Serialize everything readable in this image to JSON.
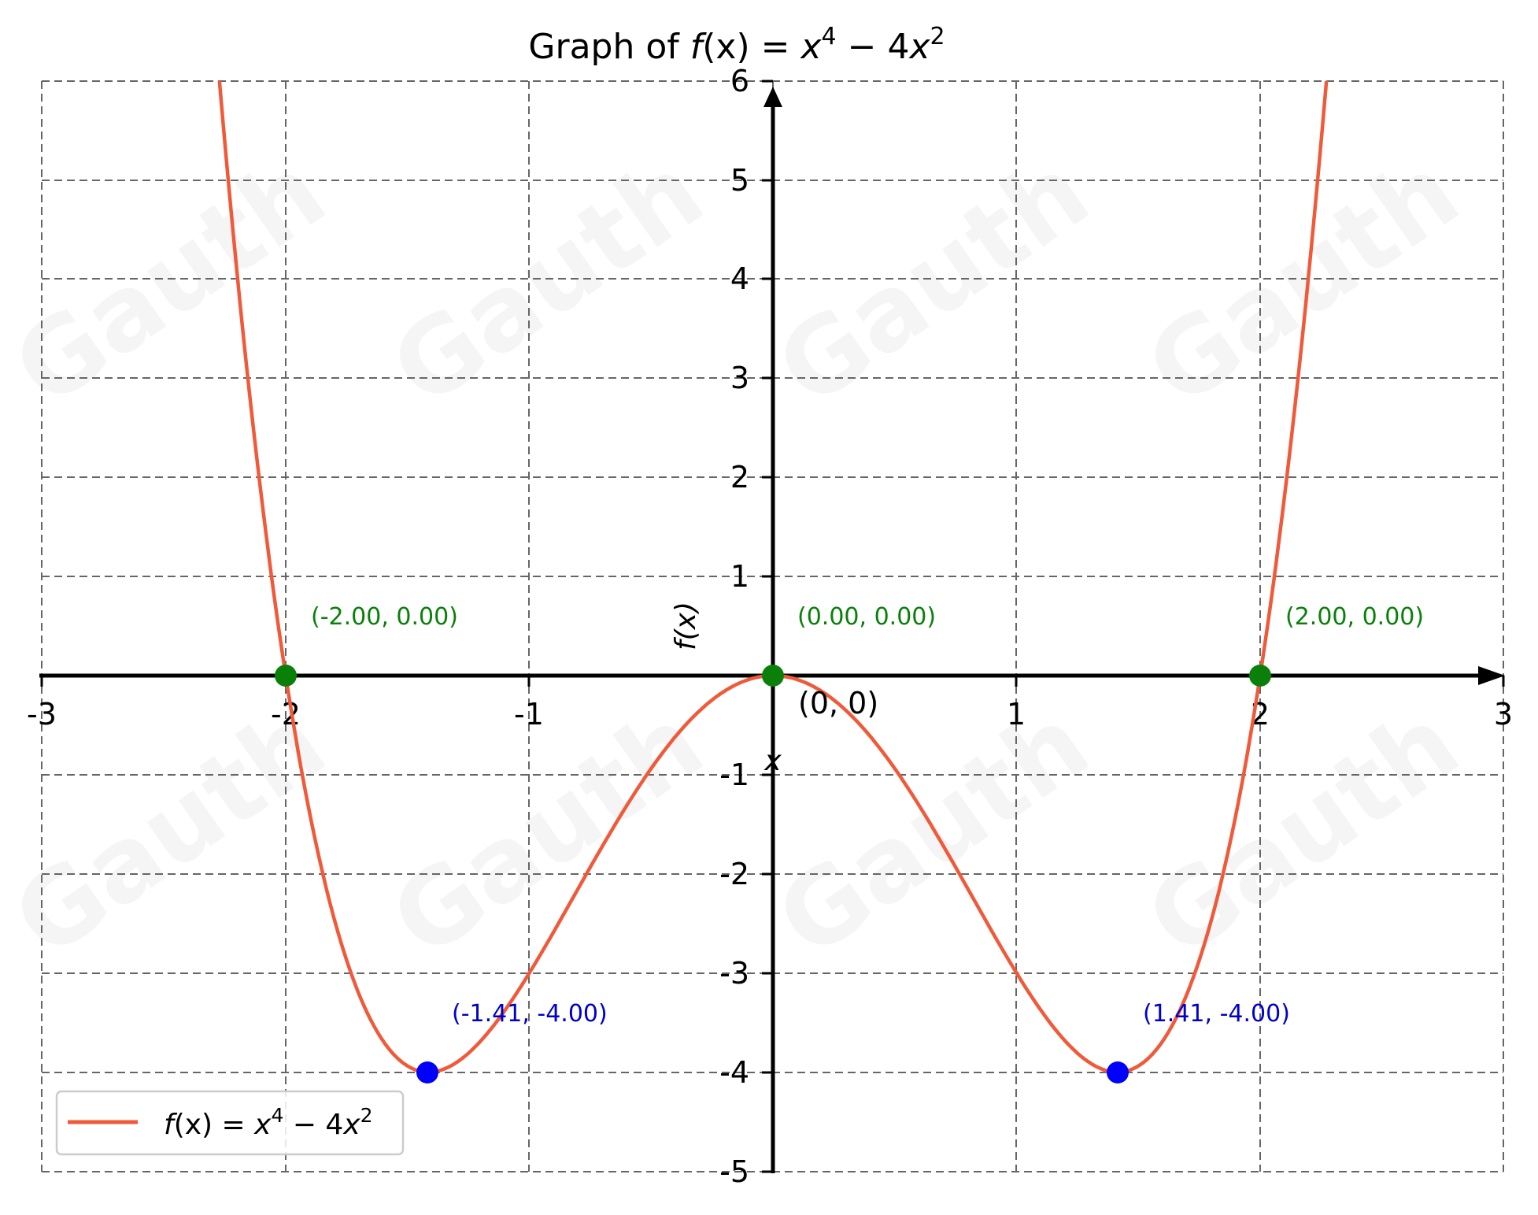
{
  "chart_data": {
    "type": "line",
    "title": "Graph of f(x) = x⁴ − 4x²",
    "title_parts": {
      "prefix": "Graph of ",
      "fx": "f",
      "rest": "(x) = x",
      "exp1": "4",
      "mid": " − 4x",
      "exp2": "2"
    },
    "xlabel": "x",
    "ylabel": "f(x)",
    "xlim": [
      -3,
      3
    ],
    "ylim": [
      -5,
      6
    ],
    "grid": true,
    "grid_style": "dashed",
    "legend_position": "lower left",
    "x_ticks": [
      -3,
      -2,
      -1,
      1,
      2,
      3
    ],
    "x_tick_labels": [
      "-3",
      "-2",
      "-1",
      "1",
      "2",
      "3"
    ],
    "y_ticks": [
      6,
      5,
      4,
      3,
      2,
      1,
      -1,
      -2,
      -3,
      -4,
      -5
    ],
    "y_tick_labels": [
      "6",
      "5",
      "4",
      "3",
      "2",
      "1",
      "-1",
      "-2",
      "-3",
      "-4",
      "-5"
    ],
    "series": [
      {
        "name": "f(x) = x⁴ − 4x²",
        "expression": "x^4 - 4x^2",
        "color": "#f05a3a",
        "x": [
          -2.27,
          -2.2,
          -2.1,
          -2.0,
          -1.9,
          -1.8,
          -1.7,
          -1.6,
          -1.5,
          -1.414,
          -1.3,
          -1.2,
          -1.1,
          -1.0,
          -0.9,
          -0.8,
          -0.7,
          -0.6,
          -0.5,
          -0.4,
          -0.3,
          -0.2,
          -0.1,
          0.0,
          0.1,
          0.2,
          0.3,
          0.4,
          0.5,
          0.6,
          0.7,
          0.8,
          0.9,
          1.0,
          1.1,
          1.2,
          1.3,
          1.414,
          1.5,
          1.6,
          1.7,
          1.8,
          1.9,
          2.0,
          2.1,
          2.2,
          2.27
        ],
        "values": [
          5.94,
          4.07,
          1.81,
          0.0,
          -1.41,
          -2.46,
          -3.21,
          -3.69,
          -3.94,
          -4.0,
          -3.9,
          -3.69,
          -3.38,
          -3.0,
          -2.58,
          -2.15,
          -1.72,
          -1.31,
          -0.94,
          -0.61,
          -0.35,
          -0.16,
          -0.04,
          0.0,
          -0.04,
          -0.16,
          -0.35,
          -0.61,
          -0.94,
          -1.31,
          -1.72,
          -2.15,
          -2.58,
          -3.0,
          -3.38,
          -3.69,
          -3.9,
          -4.0,
          -3.94,
          -3.69,
          -3.21,
          -2.46,
          -1.41,
          0.0,
          1.81,
          4.07,
          5.94
        ]
      }
    ],
    "annotations": [
      {
        "label": "(-2.00, 0.00)",
        "x": -2.0,
        "y": 0.0,
        "kind": "x-intercept",
        "color": "#008000"
      },
      {
        "label": "(0.00, 0.00)",
        "x": 0.0,
        "y": 0.0,
        "kind": "x-intercept",
        "color": "#008000"
      },
      {
        "label": "(2.00, 0.00)",
        "x": 2.0,
        "y": 0.0,
        "kind": "x-intercept",
        "color": "#008000"
      },
      {
        "label": "(-1.41, -4.00)",
        "x": -1.41,
        "y": -4.0,
        "kind": "minimum",
        "color": "#0000cc",
        "dot_color": "#0000ff"
      },
      {
        "label": "(1.41, -4.00)",
        "x": 1.41,
        "y": -4.0,
        "kind": "minimum",
        "color": "#0000cc",
        "dot_color": "#0000ff"
      }
    ],
    "origin_label": "(0, 0)",
    "legend": {
      "entries": [
        "f(x) = x⁴ − 4x²"
      ]
    }
  },
  "labels": {
    "title_prefix": "Graph of ",
    "title_f": "f",
    "title_mid": "(x) = ",
    "title_x1": "x",
    "title_exp1": "4",
    "title_minus": " − 4",
    "title_x2": "x",
    "title_exp2": "2",
    "xlabel": "x",
    "ylabel": "f(x)",
    "origin": "(0, 0)",
    "annot_neg2": "(-2.00, 0.00)",
    "annot_zero": "(0.00, 0.00)",
    "annot_pos2": "(2.00, 0.00)",
    "annot_min_left": "(-1.41, -4.00)",
    "annot_min_right": "(1.41, -4.00)",
    "legend_f": "f",
    "legend_mid": "(x) = ",
    "legend_x1": "x",
    "legend_exp1": "4",
    "legend_minus": " − 4",
    "legend_x2": "x",
    "legend_exp2": "2",
    "xt": [
      "-3",
      "-2",
      "-1",
      "1",
      "2",
      "3"
    ],
    "yt": [
      "6",
      "5",
      "4",
      "3",
      "2",
      "1",
      "-1",
      "-2",
      "-3",
      "-4",
      "-5"
    ]
  },
  "watermark": "Gauth"
}
